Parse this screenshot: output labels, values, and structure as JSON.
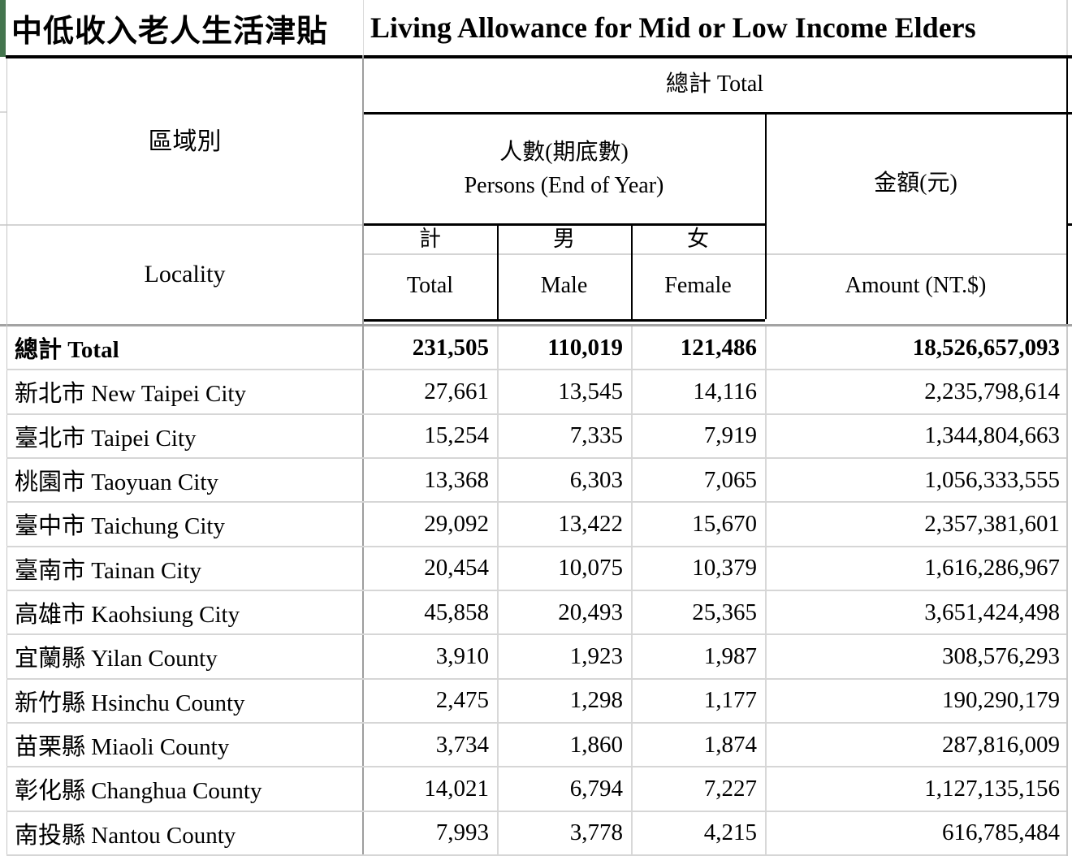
{
  "title": {
    "zh": "中低收入老人生活津貼",
    "en": "Living Allowance for Mid or Low Income Elders"
  },
  "header": {
    "locality_zh": "區域別",
    "locality_en": "Locality",
    "total_group": "總計  Total",
    "persons_zh": "人數(期底數)",
    "persons_en": "Persons (End of Year)",
    "amount_zh": "金額(元)",
    "amount_en": "Amount (NT.$)",
    "col_total_zh": "計",
    "col_total_en": "Total",
    "col_male_zh": "男",
    "col_male_en": "Male",
    "col_female_zh": "女",
    "col_female_en": "Female"
  },
  "rows": [
    {
      "name": "總計  Total",
      "total": "231,505",
      "male": "110,019",
      "female": "121,486",
      "amount": "18,526,657,093",
      "is_total": true
    },
    {
      "name": "新北市 New Taipei City",
      "total": "27,661",
      "male": "13,545",
      "female": "14,116",
      "amount": "2,235,798,614",
      "is_total": false
    },
    {
      "name": "臺北市 Taipei City",
      "total": "15,254",
      "male": "7,335",
      "female": "7,919",
      "amount": "1,344,804,663",
      "is_total": false
    },
    {
      "name": "桃園市 Taoyuan City",
      "total": "13,368",
      "male": "6,303",
      "female": "7,065",
      "amount": "1,056,333,555",
      "is_total": false
    },
    {
      "name": "臺中市 Taichung City",
      "total": "29,092",
      "male": "13,422",
      "female": "15,670",
      "amount": "2,357,381,601",
      "is_total": false
    },
    {
      "name": "臺南市 Tainan City",
      "total": "20,454",
      "male": "10,075",
      "female": "10,379",
      "amount": "1,616,286,967",
      "is_total": false
    },
    {
      "name": "高雄市 Kaohsiung City",
      "total": "45,858",
      "male": "20,493",
      "female": "25,365",
      "amount": "3,651,424,498",
      "is_total": false
    },
    {
      "name": "宜蘭縣 Yilan County",
      "total": "3,910",
      "male": "1,923",
      "female": "1,987",
      "amount": "308,576,293",
      "is_total": false
    },
    {
      "name": "新竹縣 Hsinchu County",
      "total": "2,475",
      "male": "1,298",
      "female": "1,177",
      "amount": "190,290,179",
      "is_total": false
    },
    {
      "name": "苗栗縣 Miaoli County",
      "total": "3,734",
      "male": "1,860",
      "female": "1,874",
      "amount": "287,816,009",
      "is_total": false
    },
    {
      "name": "彰化縣 Changhua County",
      "total": "14,021",
      "male": "6,794",
      "female": "7,227",
      "amount": "1,127,135,156",
      "is_total": false
    },
    {
      "name": "南投縣 Nantou County",
      "total": "7,993",
      "male": "3,778",
      "female": "4,215",
      "amount": "616,785,484",
      "is_total": false
    }
  ],
  "colors": {
    "accent_green": "#44754e",
    "heavy_border": "#000000",
    "header_bottom_gray": "#a3a3a3",
    "gridline_gray": "#d6d6d6"
  }
}
